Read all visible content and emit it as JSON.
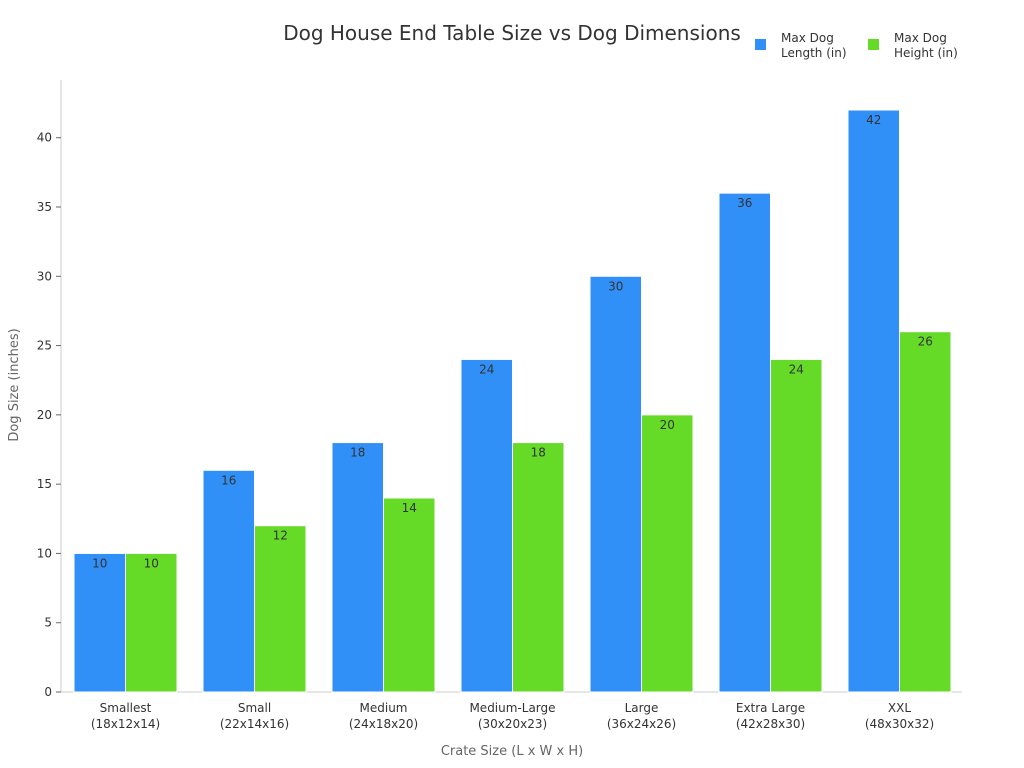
{
  "chart_data": {
    "type": "bar",
    "title": "Dog House End Table Size vs Dog Dimensions",
    "xlabel": "Crate Size (L x W x H)",
    "ylabel": "Dog Size (inches)",
    "categories": [
      [
        "Smallest",
        "(18x12x14)"
      ],
      [
        "Small",
        "(22x14x16)"
      ],
      [
        "Medium",
        "(24x18x20)"
      ],
      [
        "Medium-Large",
        "(30x20x23)"
      ],
      [
        "Large",
        "(36x24x26)"
      ],
      [
        "Extra Large",
        "(42x28x30)"
      ],
      [
        "XXL",
        "(48x30x32)"
      ]
    ],
    "series": [
      {
        "name": [
          "Max Dog",
          "Length (in)"
        ],
        "color": "#3190f7",
        "values": [
          10,
          16,
          18,
          24,
          30,
          36,
          42
        ]
      },
      {
        "name": [
          "Max Dog",
          "Height (in)"
        ],
        "color": "#66db27",
        "values": [
          10,
          12,
          14,
          18,
          20,
          24,
          26
        ]
      }
    ],
    "ylim": [
      0,
      44
    ],
    "yticks": [
      0,
      5,
      10,
      15,
      20,
      25,
      30,
      35,
      40
    ],
    "grid": false,
    "legend_position": "top-right",
    "data_labels": true
  }
}
